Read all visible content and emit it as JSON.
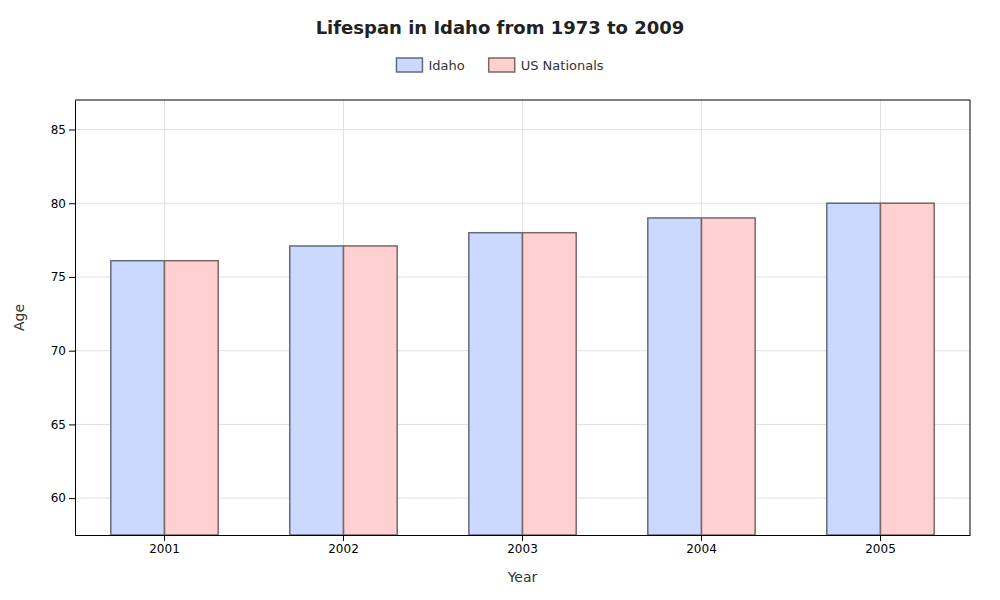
{
  "chart_data": {
    "type": "bar",
    "title": "Lifespan in Idaho from 1973 to 2009",
    "x_label": "Year",
    "y_label": "Age",
    "categories": [
      "2001",
      "2002",
      "2003",
      "2004",
      "2005"
    ],
    "series": [
      {
        "name": "Idaho",
        "color": "#ccd9ff",
        "values": [
          76.1,
          77.1,
          78.0,
          79.0,
          80.0
        ]
      },
      {
        "name": "US Nationals",
        "color": "#ffd0d0",
        "values": [
          76.1,
          77.1,
          78.0,
          79.0,
          80.0
        ]
      }
    ],
    "ylim": [
      57.5,
      87
    ],
    "yticks": [
      60,
      65,
      70,
      75,
      80,
      85
    ],
    "grid": true,
    "legend": "top"
  }
}
